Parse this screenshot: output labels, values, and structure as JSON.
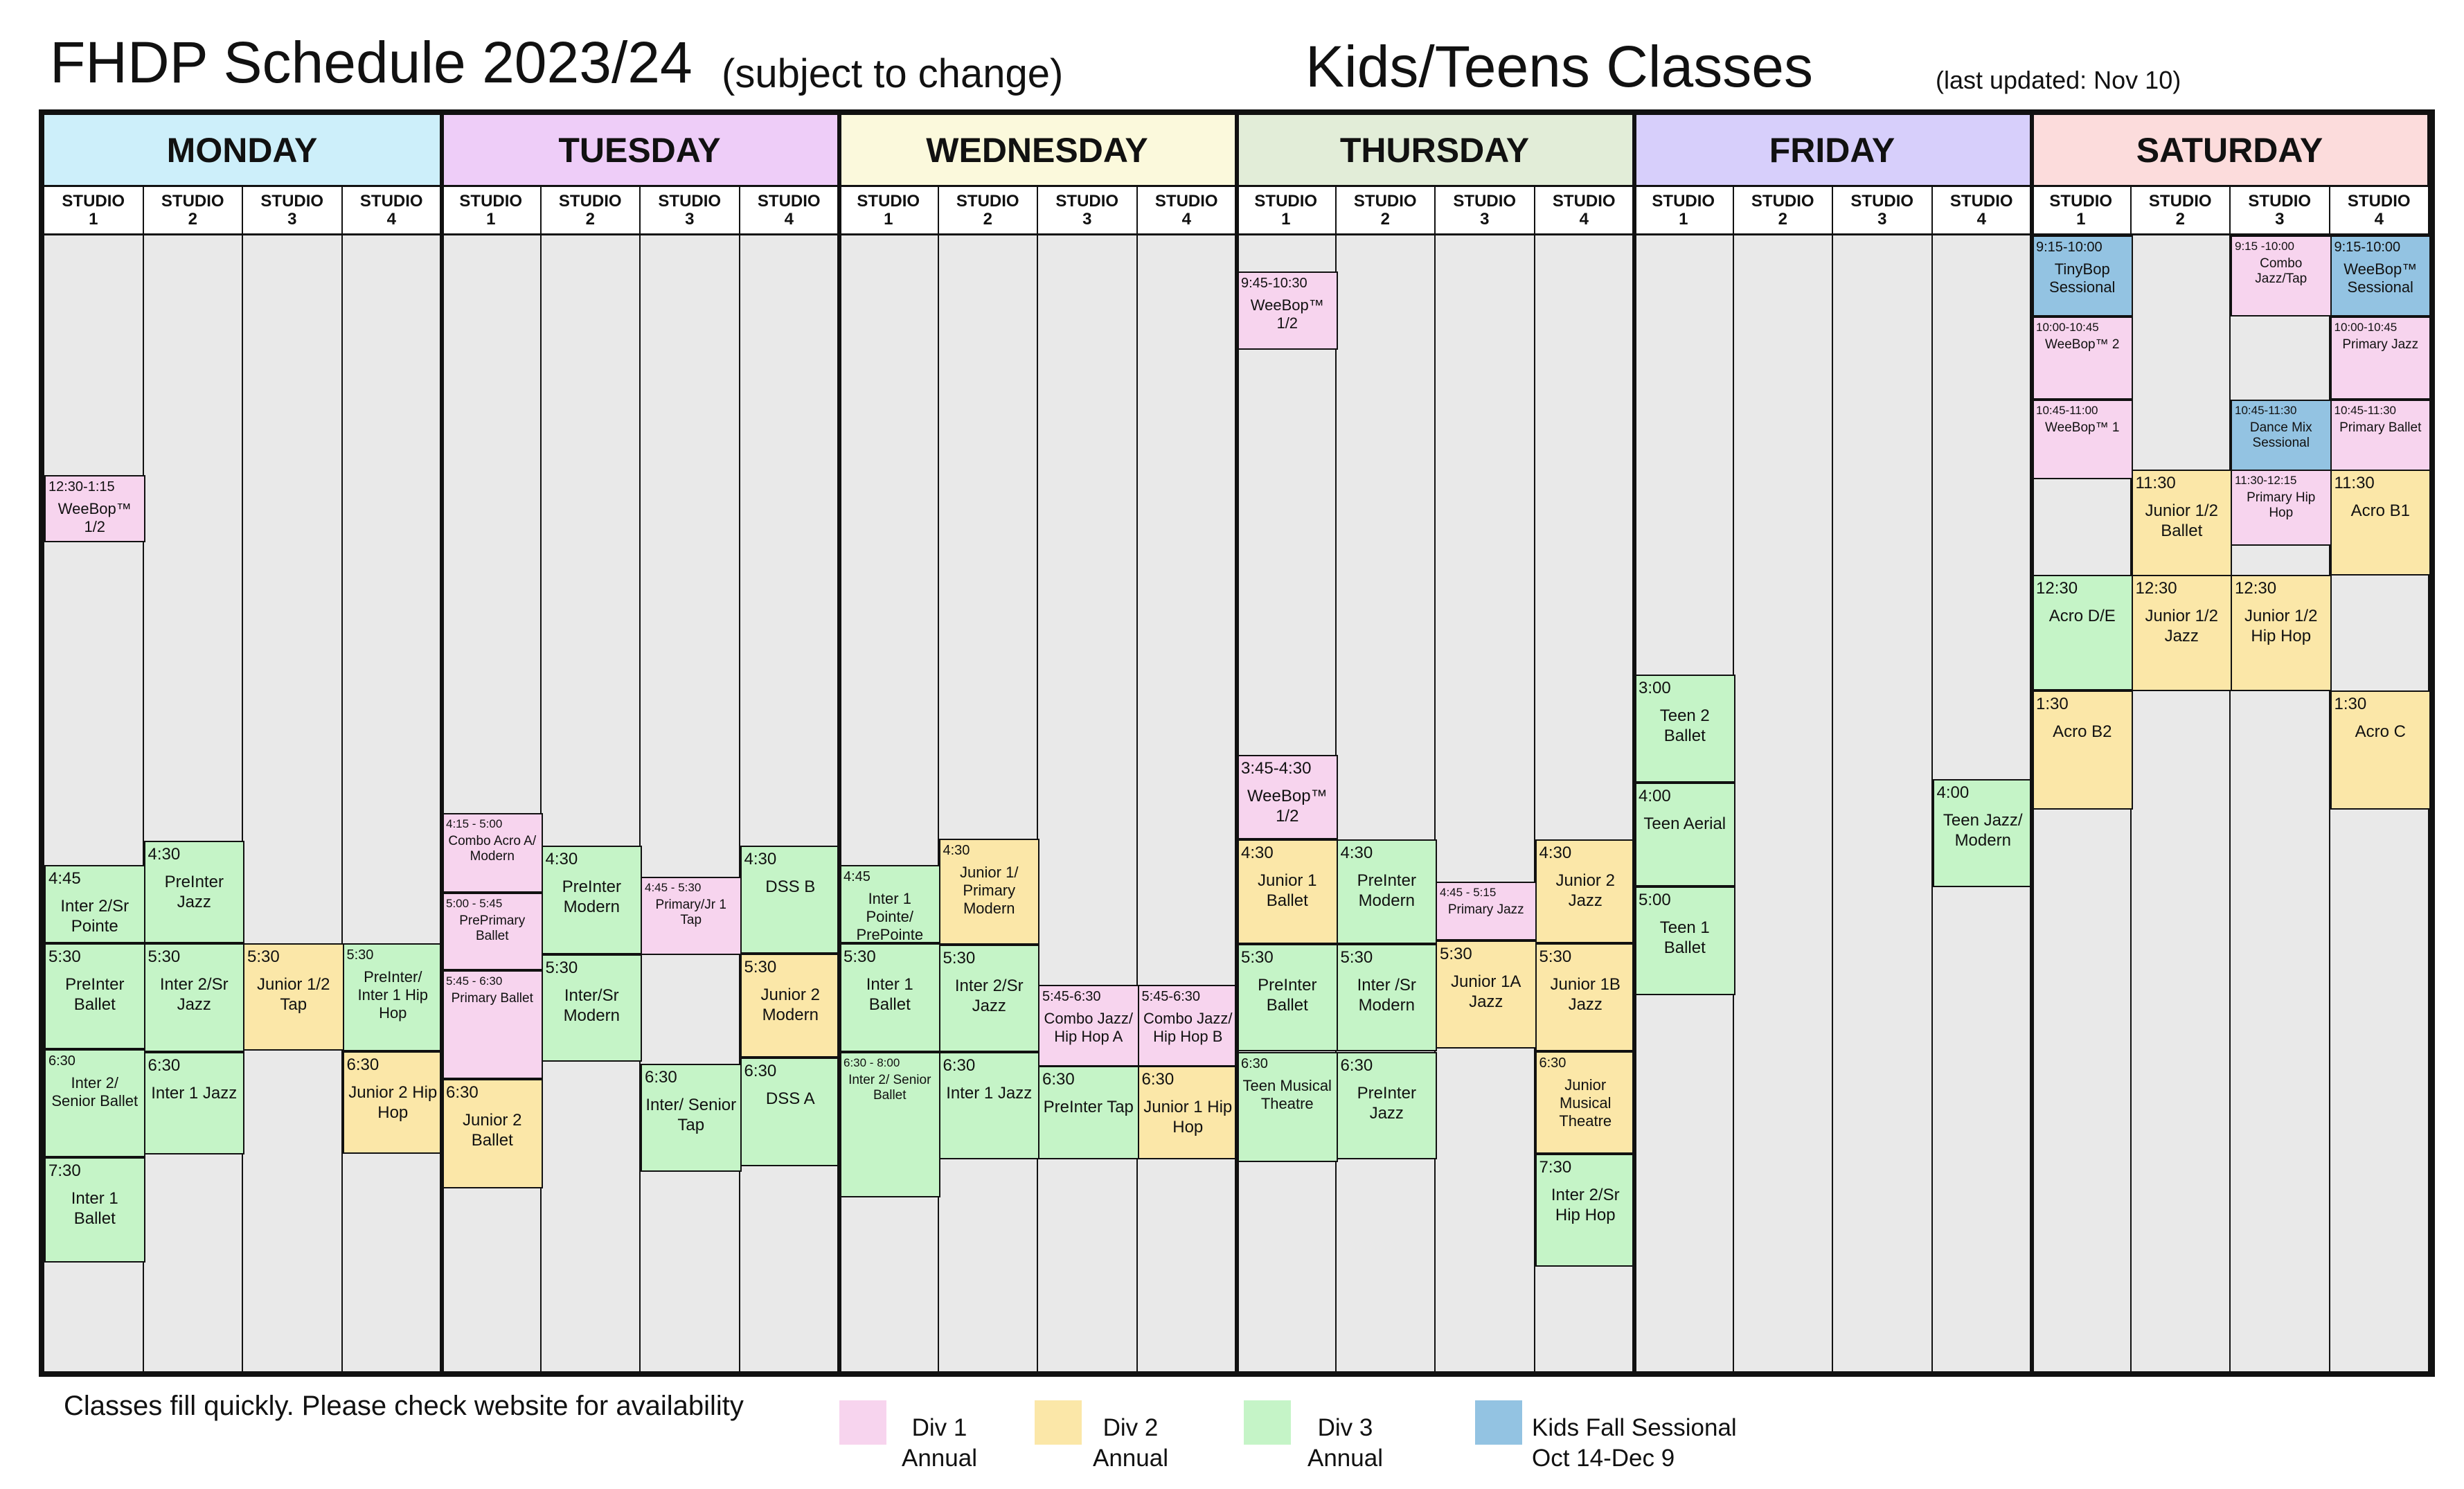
{
  "header": {
    "title": "FHDP Schedule 2023/24",
    "subtitle": "(subject to change)",
    "section": "Kids/Teens Classes",
    "updated": "(last updated: Nov 10)"
  },
  "studios": [
    "STUDIO 1",
    "STUDIO 2",
    "STUDIO 3",
    "STUDIO 4"
  ],
  "days": [
    {
      "name": "MONDAY",
      "color": "#cdeffa",
      "classes": [
        {
          "studio": 1,
          "time": "12:30-1:15",
          "name": "WeeBop™ 1/2",
          "div": "d1"
        },
        {
          "studio": 1,
          "time": "4:45",
          "name": "Inter 2/Sr Pointe",
          "div": "d3"
        },
        {
          "studio": 1,
          "time": "5:30",
          "name": "PreInter Ballet",
          "div": "d3"
        },
        {
          "studio": 1,
          "time": "6:30",
          "name": "Inter 2/ Senior Ballet",
          "div": "d3"
        },
        {
          "studio": 1,
          "time": "7:30",
          "name": "Inter 1 Ballet",
          "div": "d3"
        },
        {
          "studio": 2,
          "time": "4:30",
          "name": "PreInter Jazz",
          "div": "d3"
        },
        {
          "studio": 2,
          "time": "5:30",
          "name": "Inter 2/Sr Jazz",
          "div": "d3"
        },
        {
          "studio": 2,
          "time": "6:30",
          "name": "Inter 1 Jazz",
          "div": "d3"
        },
        {
          "studio": 3,
          "time": "5:30",
          "name": "Junior 1/2 Tap",
          "div": "d2"
        },
        {
          "studio": 4,
          "time": "5:30",
          "name": "PreInter/ Inter 1 Hip Hop",
          "div": "d3"
        },
        {
          "studio": 4,
          "time": "6:30",
          "name": "Junior 2 Hip Hop",
          "div": "d2"
        }
      ]
    },
    {
      "name": "TUESDAY",
      "color": "#eecdf8",
      "classes": [
        {
          "studio": 1,
          "time": "4:15 - 5:00",
          "name": "Combo Acro A/ Modern",
          "div": "d1"
        },
        {
          "studio": 1,
          "time": "5:00 - 5:45",
          "name": "PrePrimary Ballet",
          "div": "d1"
        },
        {
          "studio": 1,
          "time": "5:45 - 6:30",
          "name": "Primary Ballet",
          "div": "d1"
        },
        {
          "studio": 1,
          "time": "6:30",
          "name": "Junior 2 Ballet",
          "div": "d2"
        },
        {
          "studio": 2,
          "time": "4:30",
          "name": "PreInter Modern",
          "div": "d3"
        },
        {
          "studio": 2,
          "time": "5:30",
          "name": "Inter/Sr Modern",
          "div": "d3"
        },
        {
          "studio": 3,
          "time": "4:45 - 5:30",
          "name": "Primary/Jr 1 Tap",
          "div": "d1"
        },
        {
          "studio": 3,
          "time": "6:30",
          "name": "Inter/ Senior Tap",
          "div": "d3"
        },
        {
          "studio": 4,
          "time": "4:30",
          "name": "DSS B",
          "div": "d3"
        },
        {
          "studio": 4,
          "time": "5:30",
          "name": "Junior 2 Modern",
          "div": "d2"
        },
        {
          "studio": 4,
          "time": "6:30",
          "name": "DSS A",
          "div": "d3"
        }
      ]
    },
    {
      "name": "WEDNESDAY",
      "color": "#fbf9dc",
      "classes": [
        {
          "studio": 1,
          "time": "4:45",
          "name": "Inter 1 Pointe/ PrePointe",
          "div": "d3"
        },
        {
          "studio": 1,
          "time": "5:30",
          "name": "Inter 1 Ballet",
          "div": "d3"
        },
        {
          "studio": 1,
          "time": "6:30 - 8:00",
          "name": "Inter 2/ Senior Ballet",
          "div": "d3"
        },
        {
          "studio": 2,
          "time": "4:30",
          "name": "Junior 1/ Primary Modern",
          "div": "d2"
        },
        {
          "studio": 2,
          "time": "5:30",
          "name": "Inter 2/Sr Jazz",
          "div": "d3"
        },
        {
          "studio": 2,
          "time": "6:30",
          "name": "Inter 1 Jazz",
          "div": "d3"
        },
        {
          "studio": 3,
          "time": "5:45-6:30",
          "name": "Combo Jazz/ Hip Hop A",
          "div": "d1"
        },
        {
          "studio": 3,
          "time": "6:30",
          "name": "PreInter Tap",
          "div": "d3"
        },
        {
          "studio": 4,
          "time": "5:45-6:30",
          "name": "Combo Jazz/ Hip Hop B",
          "div": "d1"
        },
        {
          "studio": 4,
          "time": "6:30",
          "name": "Junior 1 Hip Hop",
          "div": "d2"
        }
      ]
    },
    {
      "name": "THURSDAY",
      "color": "#e2edd8",
      "classes": [
        {
          "studio": 1,
          "time": "9:45-10:30",
          "name": "WeeBop™ 1/2",
          "div": "d1"
        },
        {
          "studio": 1,
          "time": "3:45-4:30",
          "name": "WeeBop™ 1/2",
          "div": "d1"
        },
        {
          "studio": 1,
          "time": "4:30",
          "name": "Junior 1 Ballet",
          "div": "d2"
        },
        {
          "studio": 1,
          "time": "5:30",
          "name": "PreInter Ballet",
          "div": "d3"
        },
        {
          "studio": 1,
          "time": "6:30",
          "name": "Teen Musical Theatre",
          "div": "d3"
        },
        {
          "studio": 2,
          "time": "4:30",
          "name": "PreInter Modern",
          "div": "d3"
        },
        {
          "studio": 2,
          "time": "5:30",
          "name": "Inter /Sr Modern",
          "div": "d3"
        },
        {
          "studio": 2,
          "time": "6:30",
          "name": "PreInter Jazz",
          "div": "d3"
        },
        {
          "studio": 3,
          "time": "4:45 - 5:15",
          "name": "Primary Jazz",
          "div": "d1"
        },
        {
          "studio": 3,
          "time": "5:30",
          "name": "Junior 1A Jazz",
          "div": "d2"
        },
        {
          "studio": 4,
          "time": "4:30",
          "name": "Junior 2 Jazz",
          "div": "d2"
        },
        {
          "studio": 4,
          "time": "5:30",
          "name": "Junior 1B Jazz",
          "div": "d2"
        },
        {
          "studio": 4,
          "time": "6:30",
          "name": "Junior Musical Theatre",
          "div": "d2"
        },
        {
          "studio": 4,
          "time": "7:30",
          "name": "Inter 2/Sr Hip Hop",
          "div": "d3"
        }
      ]
    },
    {
      "name": "FRIDAY",
      "color": "#d7cffb",
      "classes": [
        {
          "studio": 1,
          "time": "3:00",
          "name": "Teen 2 Ballet",
          "div": "d3"
        },
        {
          "studio": 1,
          "time": "4:00",
          "name": "Teen Aerial",
          "div": "d3"
        },
        {
          "studio": 1,
          "time": "5:00",
          "name": "Teen 1 Ballet",
          "div": "d3"
        },
        {
          "studio": 4,
          "time": "4:00",
          "name": "Teen Jazz/ Modern",
          "div": "d3"
        }
      ]
    },
    {
      "name": "SATURDAY",
      "color": "#fcdcdc",
      "classes": [
        {
          "studio": 1,
          "time": "9:15-10:00",
          "name": "TinyBop Sessional",
          "div": "ks"
        },
        {
          "studio": 1,
          "time": "10:00-10:45",
          "name": "WeeBop™ 2",
          "div": "d1"
        },
        {
          "studio": 1,
          "time": "10:45-11:00",
          "name": "WeeBop™ 1",
          "div": "d1"
        },
        {
          "studio": 1,
          "time": "12:30",
          "name": "Acro D/E",
          "div": "d3"
        },
        {
          "studio": 1,
          "time": "1:30",
          "name": "Acro B2",
          "div": "d2"
        },
        {
          "studio": 2,
          "time": "11:30",
          "name": "Junior 1/2 Ballet",
          "div": "d2"
        },
        {
          "studio": 2,
          "time": "12:30",
          "name": "Junior 1/2 Jazz",
          "div": "d2"
        },
        {
          "studio": 3,
          "time": "9:15 -10:00",
          "name": "Combo Jazz/Tap",
          "div": "d1"
        },
        {
          "studio": 3,
          "time": "10:45-11:30",
          "name": "Dance Mix Sessional",
          "div": "ks"
        },
        {
          "studio": 3,
          "time": "11:30-12:15",
          "name": "Primary Hip Hop",
          "div": "d1"
        },
        {
          "studio": 3,
          "time": "12:30",
          "name": "Junior 1/2 Hip Hop",
          "div": "d2"
        },
        {
          "studio": 4,
          "time": "9:15-10:00",
          "name": "WeeBop™ Sessional",
          "div": "ks"
        },
        {
          "studio": 4,
          "time": "10:00-10:45",
          "name": "Primary Jazz",
          "div": "d1"
        },
        {
          "studio": 4,
          "time": "10:45-11:30",
          "name": "Primary Ballet",
          "div": "d1"
        },
        {
          "studio": 4,
          "time": "11:30",
          "name": "Acro B1",
          "div": "d2"
        },
        {
          "studio": 4,
          "time": "1:30",
          "name": "Acro C",
          "div": "d2"
        }
      ]
    }
  ],
  "footer": {
    "note": "Classes fill quickly. Please check website for availability",
    "legend": [
      {
        "label": "Div 1\nAnnual",
        "color": "#f7d4ee"
      },
      {
        "label": "Div 2\nAnnual",
        "color": "#fbe7a8"
      },
      {
        "label": "Div 3\nAnnual",
        "color": "#c5f4c7"
      },
      {
        "label": "Kids Fall Sessional\nOct 14-Dec 9",
        "color": "#93c3e2"
      }
    ]
  }
}
